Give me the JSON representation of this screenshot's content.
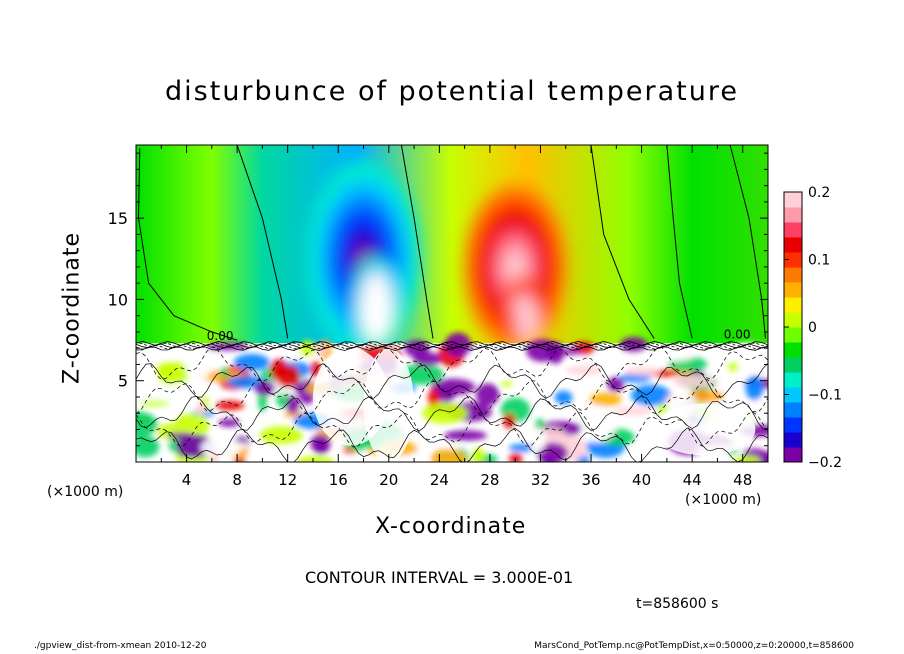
{
  "chart_data": {
    "type": "heatmap",
    "title": "disturbunce of potential temperature",
    "xlabel": "X-coordinate",
    "ylabel": "Z-coordinate",
    "x_unit_left": "(×1000 m)",
    "x_unit_right": "(×1000 m)",
    "xlim": [
      0,
      50
    ],
    "ylim": [
      0,
      19.5
    ],
    "xticks": [
      4,
      8,
      12,
      16,
      20,
      24,
      28,
      32,
      36,
      40,
      44,
      48
    ],
    "yticks": [
      5,
      10,
      15
    ],
    "colorbar": {
      "range": [
        -0.2,
        0.2
      ],
      "ticks": [
        "0.2",
        "0.1",
        "0",
        "−0.1",
        "−0.2"
      ],
      "tick_values": [
        0.2,
        0.1,
        0,
        -0.1,
        -0.2
      ],
      "colors": [
        "#7b00a6",
        "#1a00d0",
        "#0035ff",
        "#0080ff",
        "#00c8ff",
        "#00eec8",
        "#00d060",
        "#00e000",
        "#70ff00",
        "#c8ff00",
        "#ffee00",
        "#ffb000",
        "#ff7a00",
        "#ff3000",
        "#e80000",
        "#ff4060",
        "#ff9aaa",
        "#ffd0d8"
      ]
    },
    "contour_labels": [
      "0.00",
      "0.00"
    ],
    "contour_interval": "CONTOUR INTERVAL = 3.000E-01",
    "time": "t=858600 s",
    "footer_left": "./gpview_dist-from-xmean  2010-12-20",
    "footer_right": "MarsCond_PotTemp.nc@PotTempDist,x=0:50000,z=0:20000,t=858600",
    "features": [
      {
        "x": 18,
        "z": 12.5,
        "value": -0.2,
        "rx": 4.5,
        "rz": 6
      },
      {
        "x": 19,
        "z": 10,
        "value": -0.22,
        "rx": 2,
        "rz": 2.6
      },
      {
        "x": 30,
        "z": 12,
        "value": 0.2,
        "rx": 4,
        "rz": 5
      },
      {
        "x": 30.5,
        "z": 9.5,
        "value": 0.23,
        "rx": 1.4,
        "rz": 2.0
      }
    ]
  }
}
